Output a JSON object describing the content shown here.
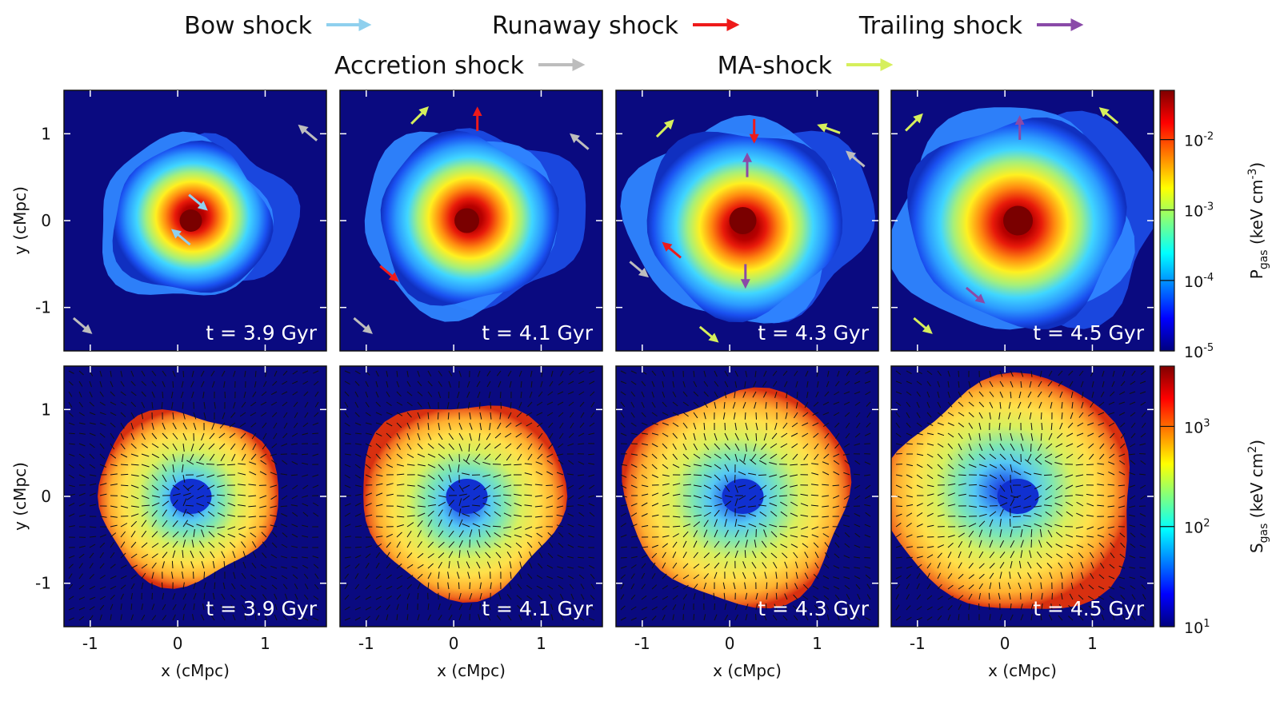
{
  "colors": {
    "background": "#0a0a80",
    "bow": "#8fd0ee",
    "runaway": "#ee1a1a",
    "trailing": "#8a4aa8",
    "accretion": "#bdbdbd",
    "ma": "#d6ef5c",
    "velocity_arrows": "#111111"
  },
  "legend": [
    {
      "key": "bow",
      "label": "Bow shock",
      "color": "#8fd0ee"
    },
    {
      "key": "runaway",
      "label": "Runaway shock",
      "color": "#ee1a1a"
    },
    {
      "key": "trailing",
      "label": "Trailing shock",
      "color": "#8a4aa8"
    },
    {
      "key": "accretion",
      "label": "Accretion shock",
      "color": "#bdbdbd"
    },
    {
      "key": "ma",
      "label": "MA-shock",
      "color": "#d6ef5c"
    }
  ],
  "chart_data": {
    "type": "heatmap",
    "title": "",
    "xlabel": "x (cMpc)",
    "ylabel": "y (cMpc)",
    "xlim": [
      -1.3,
      1.7
    ],
    "ylim": [
      -1.5,
      1.5
    ],
    "x_ticks": [
      -1,
      0,
      1
    ],
    "y_ticks": [
      -1,
      0,
      1
    ],
    "times": [
      "t = 3.9 Gyr",
      "t = 4.1 Gyr",
      "t = 4.3 Gyr",
      "t = 4.5 Gyr"
    ],
    "rows": [
      {
        "quantity": "gas pressure",
        "colorbar_label": "P_gas (keV cm^-3)",
        "colorbar_label_parts": {
          "base": "P",
          "sub": "gas",
          "unit": " (keV cm",
          "sup": "-3",
          "close": ")"
        },
        "colorbar_scale": "log",
        "colorbar_range": [
          1e-05,
          0.05
        ],
        "colorbar_ticks": [
          {
            "base": "10",
            "exp": "-2"
          },
          {
            "base": "10",
            "exp": "-3"
          },
          {
            "base": "10",
            "exp": "-4"
          },
          {
            "base": "10",
            "exp": "-5"
          }
        ],
        "colorbar_tick_values": [
          -2,
          -3,
          -4,
          -5
        ]
      },
      {
        "quantity": "gas entropy with velocity field",
        "colorbar_label": "S_gas (keV cm^2)",
        "colorbar_label_parts": {
          "base": "S",
          "sub": "gas",
          "unit": " (keV cm",
          "sup": "2",
          "close": ")"
        },
        "colorbar_scale": "log",
        "colorbar_range": [
          10,
          4000
        ],
        "colorbar_ticks": [
          {
            "base": "10",
            "exp": "3"
          },
          {
            "base": "10",
            "exp": "2"
          },
          {
            "base": "10",
            "exp": "1"
          }
        ],
        "colorbar_tick_values": [
          3,
          2,
          1
        ]
      }
    ],
    "shock_markers": [
      [
        {
          "type": "accretion",
          "x": 1.5,
          "y": 1.0,
          "angle": 140
        },
        {
          "type": "bow",
          "x": 0.22,
          "y": 0.22,
          "angle": -40
        },
        {
          "type": "bow",
          "x": 0.05,
          "y": -0.2,
          "angle": 140
        },
        {
          "type": "accretion",
          "x": -1.1,
          "y": -1.2,
          "angle": -40
        }
      ],
      [
        {
          "type": "ma",
          "x": -0.4,
          "y": 1.2,
          "angle": 45
        },
        {
          "type": "runaway",
          "x": 0.27,
          "y": 1.15,
          "angle": 90
        },
        {
          "type": "accretion",
          "x": 1.45,
          "y": 0.9,
          "angle": 140
        },
        {
          "type": "runaway",
          "x": -0.75,
          "y": -0.6,
          "angle": -40
        },
        {
          "type": "accretion",
          "x": -1.05,
          "y": -1.2,
          "angle": -40
        }
      ],
      [
        {
          "type": "ma",
          "x": -0.75,
          "y": 1.05,
          "angle": 45
        },
        {
          "type": "runaway",
          "x": 0.28,
          "y": 1.05,
          "angle": -90
        },
        {
          "type": "ma",
          "x": 1.15,
          "y": 1.05,
          "angle": 160
        },
        {
          "type": "trailing",
          "x": 0.2,
          "y": 0.62,
          "angle": 90
        },
        {
          "type": "accretion",
          "x": 1.45,
          "y": 0.7,
          "angle": 140
        },
        {
          "type": "runaway",
          "x": -0.65,
          "y": -0.35,
          "angle": 140
        },
        {
          "type": "trailing",
          "x": 0.18,
          "y": -0.62,
          "angle": -90
        },
        {
          "type": "accretion",
          "x": -1.05,
          "y": -0.55,
          "angle": -40
        },
        {
          "type": "ma",
          "x": -0.25,
          "y": -1.3,
          "angle": -40
        }
      ],
      [
        {
          "type": "ma",
          "x": -1.05,
          "y": 1.12,
          "angle": 45
        },
        {
          "type": "trailing",
          "x": 0.17,
          "y": 1.05,
          "angle": 90
        },
        {
          "type": "ma",
          "x": 1.2,
          "y": 1.2,
          "angle": 140
        },
        {
          "type": "trailing",
          "x": -0.35,
          "y": -0.85,
          "angle": -40
        },
        {
          "type": "ma",
          "x": -0.95,
          "y": -1.2,
          "angle": -40
        }
      ]
    ]
  }
}
